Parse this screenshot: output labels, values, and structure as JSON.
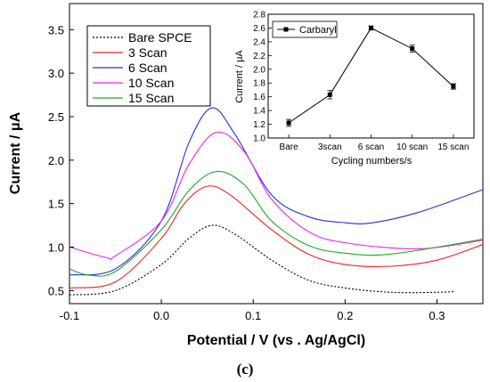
{
  "chart_data": [
    {
      "type": "line",
      "xlabel": "Potential / V (vs . Ag/AgCl)",
      "ylabel": "Current / μA",
      "xlim": [
        -0.1,
        0.35
      ],
      "ylim": [
        0.35,
        3.8
      ],
      "xticks": [
        -0.1,
        0.0,
        0.1,
        0.2,
        0.3
      ],
      "xtick_labels": [
        "-0.1",
        "0.0",
        "0.1",
        "0.2",
        "0.3"
      ],
      "yticks": [
        0.5,
        1.0,
        1.5,
        2.0,
        2.5,
        3.0,
        3.5
      ],
      "ytick_labels": [
        "0.5",
        "1.0",
        "1.5",
        "2.0",
        "2.5",
        "3.0",
        "3.5"
      ],
      "legend_position": "top-left",
      "series": [
        {
          "name": "Bare SPCE",
          "color": "#000000",
          "dashed": true,
          "x": [
            -0.1,
            -0.05,
            0.0,
            0.03,
            0.055,
            0.08,
            0.12,
            0.16,
            0.2,
            0.25,
            0.3,
            0.32
          ],
          "y": [
            0.45,
            0.5,
            0.8,
            1.1,
            1.25,
            1.15,
            0.85,
            0.62,
            0.53,
            0.48,
            0.48,
            0.49
          ]
        },
        {
          "name": "3 Scan",
          "color": "#ee2222",
          "dashed": false,
          "x": [
            -0.1,
            -0.05,
            0.0,
            0.025,
            0.05,
            0.075,
            0.12,
            0.16,
            0.2,
            0.25,
            0.3,
            0.35
          ],
          "y": [
            0.53,
            0.6,
            1.1,
            1.5,
            1.7,
            1.6,
            1.2,
            0.92,
            0.8,
            0.78,
            0.85,
            1.03
          ]
        },
        {
          "name": "6 Scan",
          "color": "#2233cc",
          "dashed": false,
          "x": [
            -0.1,
            -0.05,
            0.0,
            0.03,
            0.055,
            0.08,
            0.12,
            0.16,
            0.2,
            0.23,
            0.28,
            0.35
          ],
          "y": [
            0.68,
            0.75,
            1.3,
            2.2,
            2.6,
            2.3,
            1.6,
            1.35,
            1.28,
            1.28,
            1.4,
            1.66
          ]
        },
        {
          "name": "10 Scan",
          "color": "#ee22ee",
          "dashed": false,
          "x": [
            -0.1,
            -0.06,
            -0.05,
            0.0,
            0.03,
            0.06,
            0.09,
            0.12,
            0.16,
            0.2,
            0.28,
            0.35
          ],
          "y": [
            1.0,
            0.88,
            0.9,
            1.3,
            1.95,
            2.32,
            2.1,
            1.55,
            1.18,
            1.05,
            0.98,
            1.08
          ]
        },
        {
          "name": "15 Scan",
          "color": "#22aa22",
          "dashed": false,
          "x": [
            -0.1,
            -0.08,
            -0.05,
            0.0,
            0.03,
            0.06,
            0.09,
            0.12,
            0.16,
            0.2,
            0.25,
            0.35
          ],
          "y": [
            0.75,
            0.68,
            0.72,
            1.2,
            1.65,
            1.87,
            1.72,
            1.3,
            1.02,
            0.93,
            0.92,
            1.09
          ]
        }
      ]
    },
    {
      "type": "line",
      "xlabel": "Cycling numbers/s",
      "ylabel": "Current / μA",
      "ylim": [
        1.0,
        2.8
      ],
      "yticks": [
        1.0,
        1.2,
        1.4,
        1.6,
        1.8,
        2.0,
        2.2,
        2.4,
        2.6,
        2.8
      ],
      "ytick_labels": [
        "1.0",
        "1.2",
        "1.4",
        "1.6",
        "1.8",
        "2.0",
        "2.2",
        "2.4",
        "2.6",
        "2.8"
      ],
      "categories": [
        "Bare",
        "3scan",
        "6 scan",
        "10 scan",
        "15 scan"
      ],
      "legend_position": "top-left",
      "series": [
        {
          "name": "Carbaryl",
          "color": "#000000",
          "values": [
            1.22,
            1.63,
            2.6,
            2.3,
            1.75
          ],
          "error": [
            0.05,
            0.06,
            0.03,
            0.05,
            0.04
          ]
        }
      ]
    }
  ],
  "caption": "(c)"
}
